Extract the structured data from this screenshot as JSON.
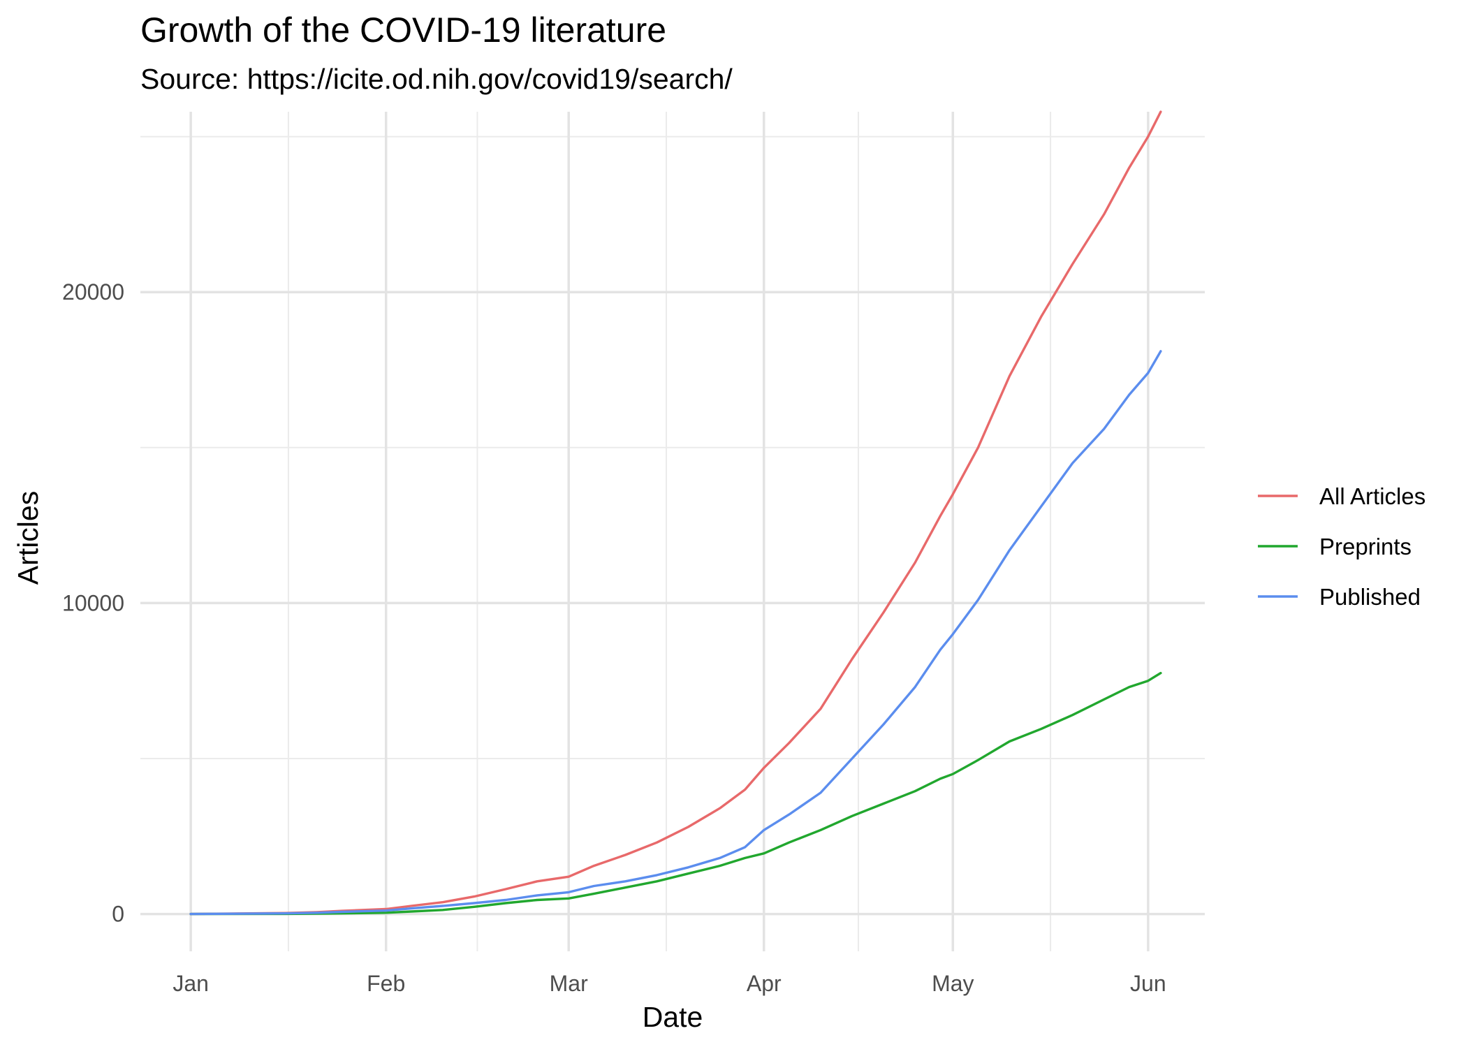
{
  "chart_data": {
    "type": "line",
    "title": "Growth of the COVID-19 literature",
    "subtitle": "Source: https://icite.od.nih.gov/covid19/search/",
    "xlabel": "Date",
    "ylabel": "Articles",
    "x_ticks": [
      "Jan",
      "Feb",
      "Mar",
      "Apr",
      "May",
      "Jun"
    ],
    "x_tick_days": [
      0,
      31,
      60,
      91,
      121,
      152
    ],
    "y_ticks": [
      0,
      10000,
      20000
    ],
    "ylim": [
      -1200,
      25800
    ],
    "xlim_days": [
      -8,
      161
    ],
    "grid": true,
    "legend_position": "right",
    "x": [
      "Jan 1",
      "Jan 16",
      "Jan 21",
      "Jan 25",
      "Feb 1",
      "Feb 5",
      "Feb 10",
      "Feb 15",
      "Feb 20",
      "Feb 25",
      "Mar 1",
      "Mar 5",
      "Mar 10",
      "Mar 15",
      "Mar 20",
      "Mar 25",
      "Mar 29",
      "Apr 1",
      "Apr 5",
      "Apr 10",
      "Apr 15",
      "Apr 20",
      "Apr 25",
      "Apr 29",
      "May 1",
      "May 5",
      "May 10",
      "May 15",
      "May 20",
      "May 25",
      "May 29",
      "Jun 1",
      "Jun 3"
    ],
    "series": [
      {
        "name": "All Articles",
        "color": "#E8696A",
        "values": [
          0,
          30,
          60,
          100,
          160,
          260,
          380,
          560,
          800,
          1050,
          1200,
          1550,
          1900,
          2300,
          2800,
          3400,
          4000,
          4700,
          5500,
          6600,
          8200,
          9700,
          11300,
          12800,
          13500,
          15000,
          17300,
          19200,
          20900,
          22500,
          24000,
          25000,
          25800
        ]
      },
      {
        "name": "Preprints",
        "color": "#21A72E",
        "values": [
          0,
          5,
          10,
          20,
          40,
          80,
          130,
          230,
          350,
          450,
          500,
          650,
          850,
          1050,
          1300,
          1550,
          1800,
          1950,
          2300,
          2700,
          3150,
          3550,
          3950,
          4350,
          4500,
          4950,
          5550,
          5950,
          6400,
          6900,
          7300,
          7500,
          7750
        ]
      },
      {
        "name": "Published",
        "color": "#5B8DEE",
        "values": [
          0,
          20,
          40,
          70,
          110,
          180,
          260,
          350,
          450,
          600,
          700,
          900,
          1050,
          1250,
          1500,
          1800,
          2150,
          2700,
          3200,
          3900,
          5000,
          6100,
          7300,
          8500,
          9000,
          10100,
          11700,
          13100,
          14500,
          15600,
          16700,
          17400,
          18100
        ]
      }
    ]
  }
}
